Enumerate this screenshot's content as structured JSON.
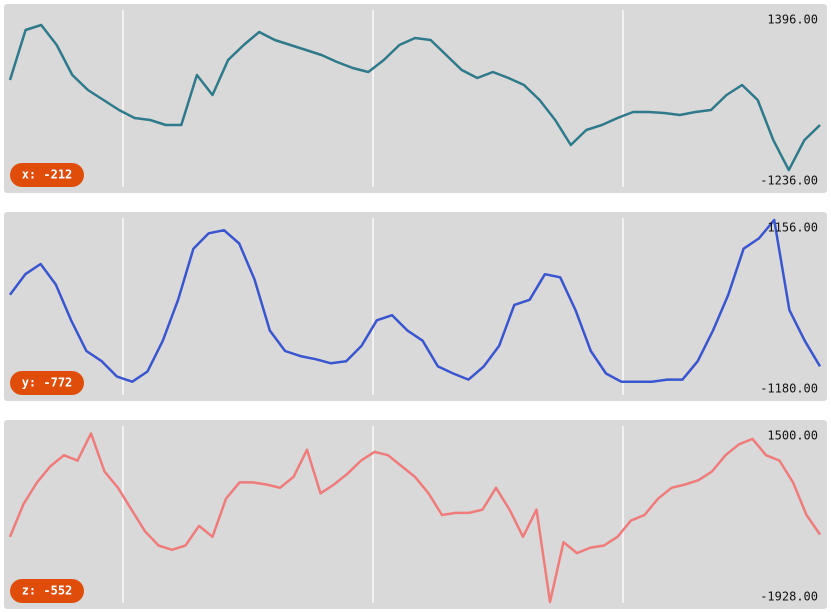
{
  "chart_data": [
    {
      "type": "line",
      "badge": "x: -212",
      "color": "#2e7a8a",
      "values": [
        367,
        1124,
        1199,
        897,
        443,
        216,
        65,
        -87,
        -208,
        -238,
        -313,
        -313,
        443,
        140,
        670,
        897,
        1093,
        972,
        897,
        821,
        746,
        640,
        549,
        488,
        670,
        897,
        1003,
        972,
        746,
        518,
        397,
        488,
        397,
        292,
        65,
        -238,
        -616,
        -389,
        -313,
        -208,
        -117,
        -117,
        -132,
        -162,
        -117,
        -87,
        140,
        292,
        65,
        -541,
        -995,
        -541,
        -313
      ],
      "ylim": [
        -1236,
        1396
      ],
      "yticks": [
        {
          "value": 1396,
          "label": "1396.00"
        },
        {
          "value": -1236,
          "label": "-1236.00"
        }
      ]
    },
    {
      "type": "line",
      "badge": "y: -772",
      "color": "#3a55d0",
      "values": [
        153,
        428,
        565,
        290,
        -191,
        -603,
        -740,
        -946,
        -1015,
        -878,
        -465,
        84,
        771,
        977,
        1019,
        840,
        359,
        -328,
        -603,
        -671,
        -713,
        -768,
        -740,
        -534,
        -191,
        -122,
        -328,
        -465,
        -809,
        -905,
        -987,
        -809,
        -534,
        16,
        84,
        428,
        387,
        -53,
        -603,
        -905,
        -1015,
        -1015,
        -1015,
        -987,
        -987,
        -740,
        -328,
        153,
        771,
        909,
        1156,
        -53,
        -465,
        -809
      ],
      "ylim": [
        -1180,
        1156
      ],
      "yticks": [
        {
          "value": 1156,
          "label": "1156.00"
        },
        {
          "value": -1180,
          "label": "-1180.00"
        }
      ]
    },
    {
      "type": "line",
      "badge": "z: -552",
      "color": "#f07b7b",
      "values": [
        -643,
        0,
        428,
        750,
        964,
        857,
        1393,
        643,
        321,
        -107,
        -536,
        -814,
        -900,
        -814,
        -429,
        -643,
        107,
        428,
        428,
        386,
        321,
        536,
        1071,
        214,
        386,
        600,
        857,
        1029,
        964,
        750,
        536,
        214,
        -214,
        -172,
        -172,
        -107,
        321,
        -107,
        -643,
        -107,
        -1928,
        -750,
        -964,
        -857,
        -814,
        -643,
        -322,
        -214,
        107,
        321,
        386,
        471,
        643,
        964,
        1179,
        1286,
        964,
        857,
        428,
        -214,
        -600
      ],
      "ylim": [
        -1928,
        1500
      ],
      "yticks": [
        {
          "value": 1500,
          "label": "1500.00"
        },
        {
          "value": -1928,
          "label": "-1928.00"
        }
      ]
    }
  ]
}
